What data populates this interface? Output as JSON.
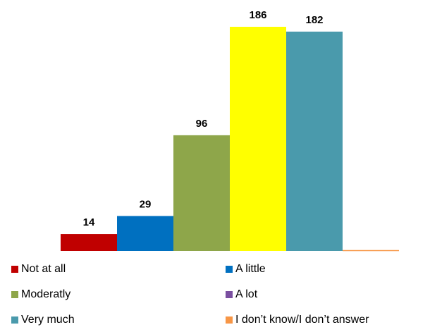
{
  "chart_data": {
    "type": "bar",
    "categories": [
      "Not at all",
      "A little",
      "Moderatly",
      "A lot",
      "Very much",
      "I don’t know/I don’t answer"
    ],
    "values": [
      14,
      29,
      96,
      186,
      182,
      0
    ],
    "data_labels": [
      "14",
      "29",
      "96",
      "186",
      "182",
      ""
    ],
    "bar_colors": [
      "#c00000",
      "#0070c0",
      "#8ea64a",
      "#ffff00",
      "#4a9aac",
      "#f79646"
    ],
    "legend_colors": [
      "#c00000",
      "#0070c0",
      "#8ea64a",
      "#7a4fa0",
      "#4a9aac",
      "#f79646"
    ],
    "ylim": [
      0,
      186
    ],
    "grid": false,
    "legend_position": "bottom",
    "title": "",
    "xlabel": "",
    "ylabel": ""
  }
}
